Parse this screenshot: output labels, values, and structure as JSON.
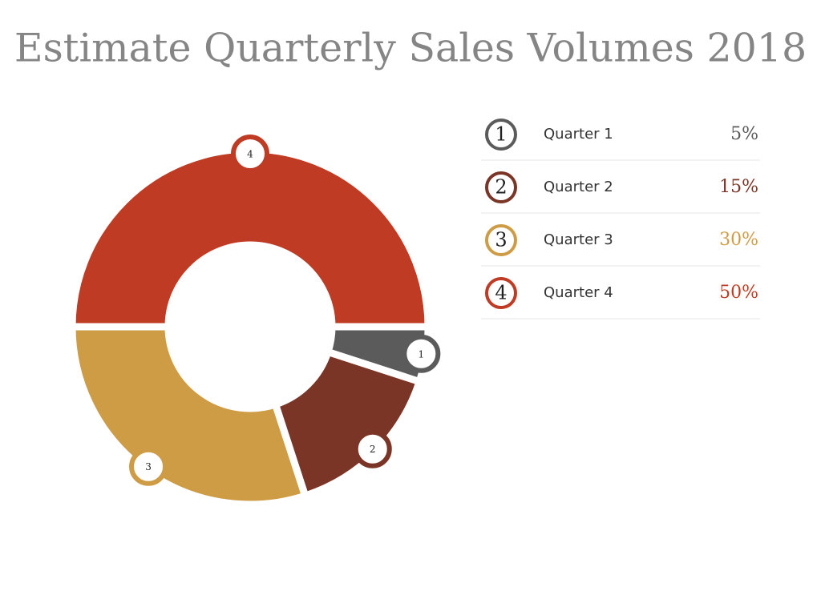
{
  "chart_data": {
    "type": "donut",
    "title": "Estimate Quarterly Sales Volumes 2018",
    "categories": [
      "Quarter 1",
      "Quarter 2",
      "Quarter 3",
      "Quarter 4"
    ],
    "badges": [
      "1",
      "2",
      "3",
      "4"
    ],
    "values": [
      5,
      15,
      30,
      50
    ],
    "value_labels": [
      "5%",
      "15%",
      "30%",
      "50%"
    ],
    "colors": [
      "#5b5b5b",
      "#7b3526",
      "#cf9c46",
      "#bf3b23"
    ]
  }
}
